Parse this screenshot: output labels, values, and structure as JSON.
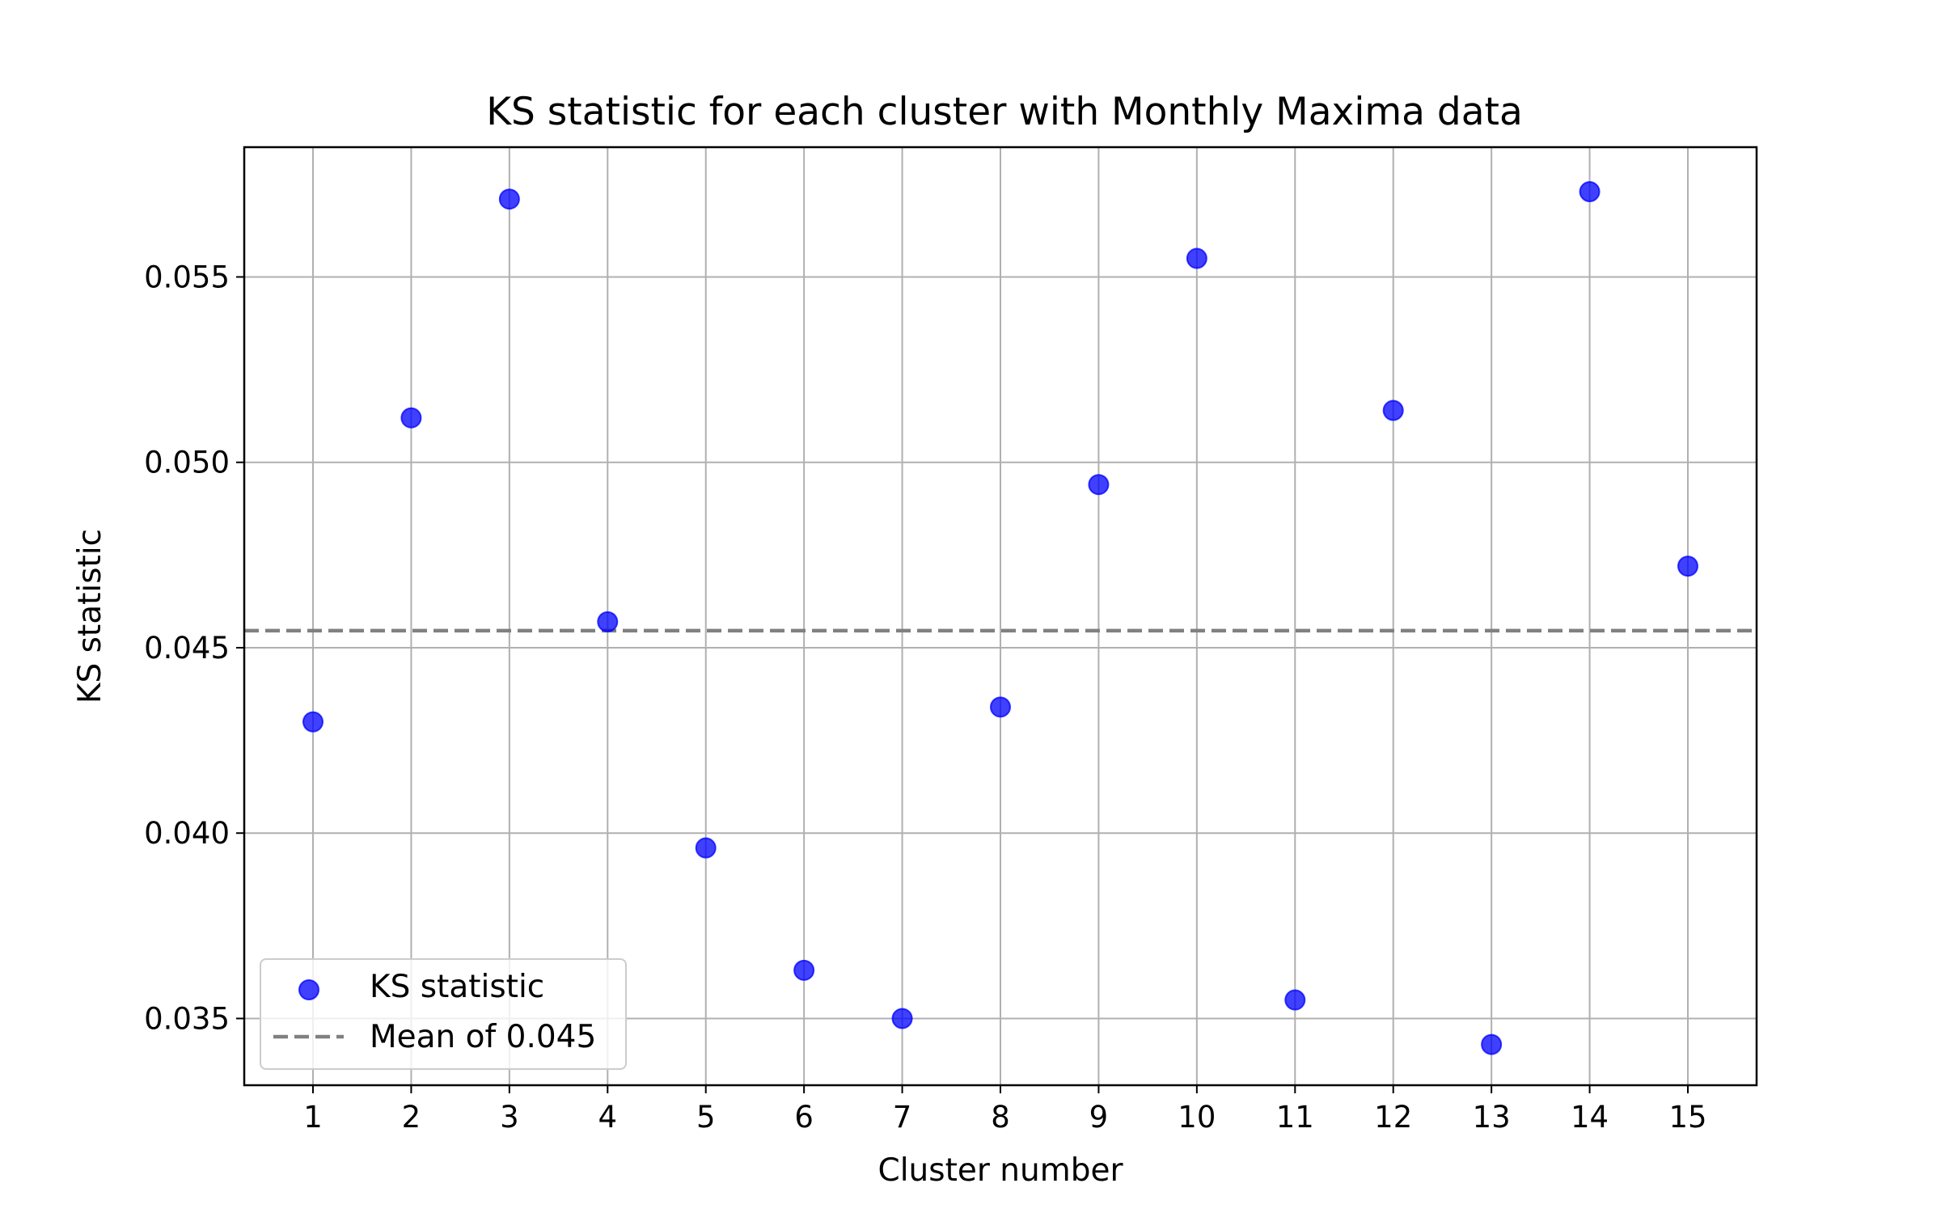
{
  "chart_data": {
    "type": "scatter",
    "title": "KS statistic for each cluster with Monthly Maxima data",
    "xlabel": "Cluster number",
    "ylabel": "KS statistic",
    "x": [
      1,
      2,
      3,
      4,
      5,
      6,
      7,
      8,
      9,
      10,
      11,
      12,
      13,
      14,
      15
    ],
    "series": [
      {
        "name": "KS statistic",
        "color": "#0000ff",
        "values": [
          0.043,
          0.0512,
          0.0571,
          0.0457,
          0.0396,
          0.0363,
          0.035,
          0.0434,
          0.0494,
          0.0555,
          0.0355,
          0.0514,
          0.0343,
          0.0573,
          0.0472
        ]
      }
    ],
    "reference_line": {
      "name": "Mean of 0.045",
      "value": 0.04546,
      "style": "dashed",
      "color": "#808080"
    },
    "xticks": [
      1,
      2,
      3,
      4,
      5,
      6,
      7,
      8,
      9,
      10,
      11,
      12,
      13,
      14,
      15
    ],
    "xtick_labels": [
      "1",
      "2",
      "3",
      "4",
      "5",
      "6",
      "7",
      "8",
      "9",
      "10",
      "11",
      "12",
      "13",
      "14",
      "15"
    ],
    "yticks": [
      0.035,
      0.04,
      0.045,
      0.05,
      0.055
    ],
    "ytick_labels": [
      "0.035",
      "0.040",
      "0.045",
      "0.050",
      "0.055"
    ],
    "xlim": [
      0.3,
      15.7
    ],
    "ylim": [
      0.0332,
      0.0585
    ],
    "grid": true,
    "legend_position": "lower-left"
  }
}
